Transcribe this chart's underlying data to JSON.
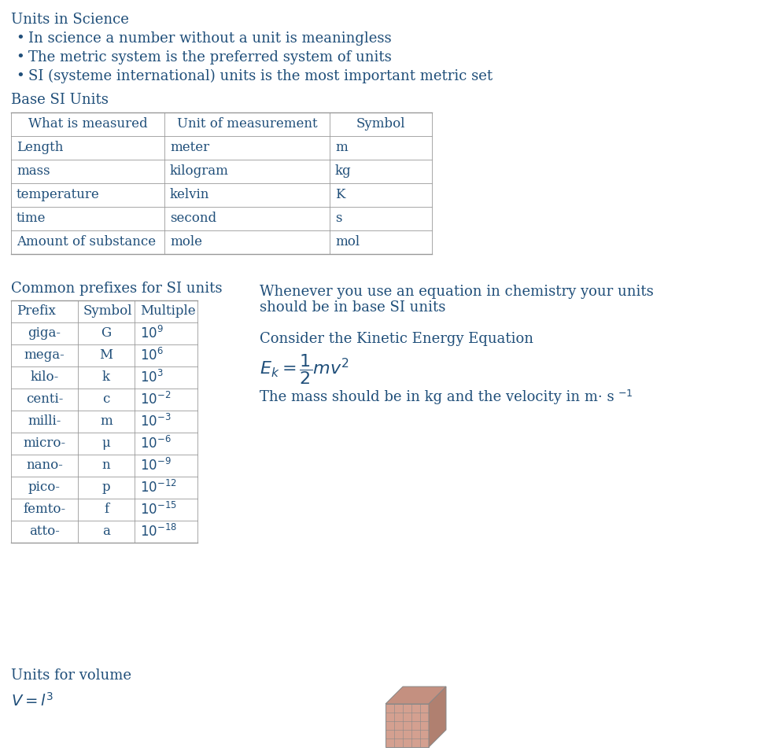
{
  "title": "Units in Science",
  "bullets": [
    "In science a number without a unit is meaningless",
    "The metric system is the preferred system of units",
    "SI (systeme international) units is the most important metric set"
  ],
  "section1": "Base SI Units",
  "base_si_headers": [
    "What is measured",
    "Unit of measurement",
    "Symbol"
  ],
  "base_si_rows": [
    [
      "Length",
      "meter",
      "m"
    ],
    [
      "mass",
      "kilogram",
      "kg"
    ],
    [
      "temperature",
      "kelvin",
      "K"
    ],
    [
      "time",
      "second",
      "s"
    ],
    [
      "Amount of substance",
      "mole",
      "mol"
    ]
  ],
  "section2": "Common prefixes for SI units",
  "prefix_headers": [
    "Prefix",
    "Symbol",
    "Multiple"
  ],
  "prefix_rows": [
    [
      "giga-",
      "G",
      "9"
    ],
    [
      "mega-",
      "M",
      "6"
    ],
    [
      "kilo-",
      "k",
      "3"
    ],
    [
      "centi-",
      "c",
      "-2"
    ],
    [
      "milli-",
      "m",
      "-3"
    ],
    [
      "micro-",
      "μ",
      "-6"
    ],
    [
      "nano-",
      "n",
      "-9"
    ],
    [
      "pico-",
      "p",
      "-12"
    ],
    [
      "femto-",
      "f",
      "-15"
    ],
    [
      "atto-",
      "a",
      "-18"
    ]
  ],
  "right_text1a": "Whenever you use an equation in chemistry your units",
  "right_text1b": "should be in base SI units",
  "right_text2": "Consider the Kinetic Energy Equation",
  "right_text3a": "The mass should be in kg and the velocity in m· s",
  "section3": "Units for volume",
  "text_color": "#1F4E79",
  "bg_color": "#FFFFFF",
  "fontsize_title": 13,
  "fontsize_body": 13,
  "fontsize_table": 12,
  "fontsize_section": 13
}
